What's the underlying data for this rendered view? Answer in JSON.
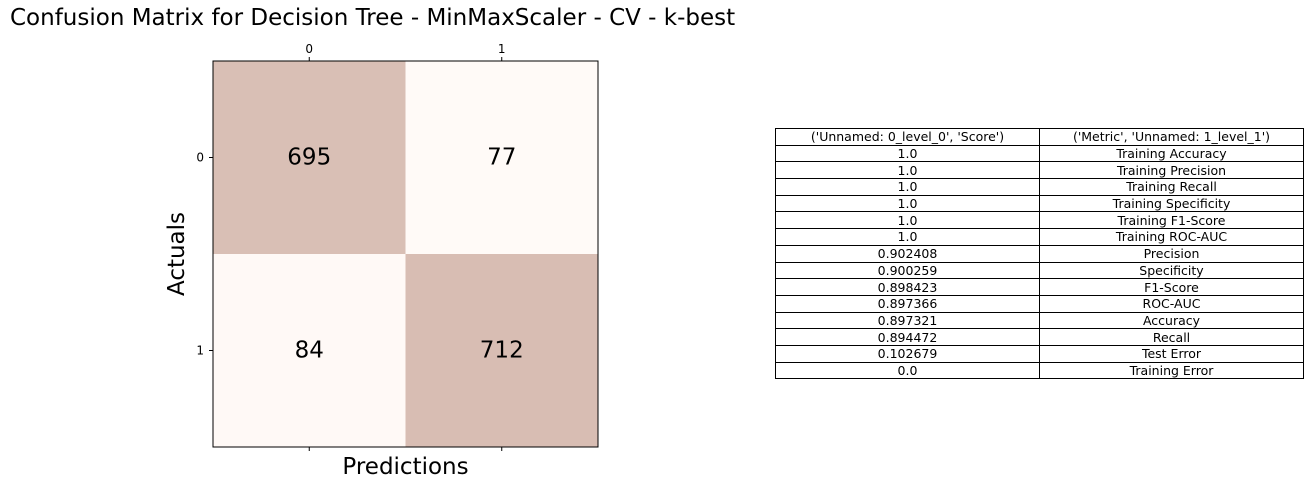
{
  "title": "Confusion Matrix for Decision Tree - MinMaxScaler - CV - k-best",
  "chart_data": [
    {
      "type": "heatmap",
      "title": "Confusion Matrix for Decision Tree - MinMaxScaler - CV - k-best",
      "xlabel": "Predictions",
      "ylabel": "Actuals",
      "x_ticks": [
        "0",
        "1"
      ],
      "y_ticks": [
        "0",
        "1"
      ],
      "values": [
        [
          695,
          77
        ],
        [
          84,
          712
        ]
      ],
      "colormap": {
        "low": "#fffaf7",
        "high": "#d8bdb3"
      }
    },
    {
      "type": "table",
      "columns": [
        "('Unnamed: 0_level_0', 'Score')",
        "('Metric', 'Unnamed: 1_level_1')"
      ],
      "rows": [
        [
          "1.0",
          "Training Accuracy"
        ],
        [
          "1.0",
          "Training Precision"
        ],
        [
          "1.0",
          "Training Recall"
        ],
        [
          "1.0",
          "Training Specificity"
        ],
        [
          "1.0",
          "Training F1-Score"
        ],
        [
          "1.0",
          "Training ROC-AUC"
        ],
        [
          "0.902408",
          "Precision"
        ],
        [
          "0.900259",
          "Specificity"
        ],
        [
          "0.898423",
          "F1-Score"
        ],
        [
          "0.897366",
          "ROC-AUC"
        ],
        [
          "0.897321",
          "Accuracy"
        ],
        [
          "0.894472",
          "Recall"
        ],
        [
          "0.102679",
          "Test Error"
        ],
        [
          "0.0",
          "Training Error"
        ]
      ]
    }
  ]
}
